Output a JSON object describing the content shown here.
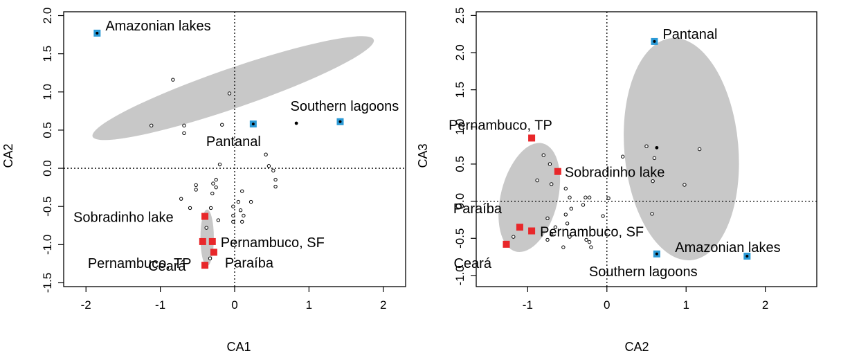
{
  "colors": {
    "ellipse": "#c8c8c8",
    "region_blue": "#2b9ad6",
    "region_red": "#e8272a",
    "point_black": "#000000"
  },
  "chart_data": [
    {
      "type": "scatter",
      "title": "",
      "xlabel": "CA1",
      "ylabel": "CA2",
      "xlim": [
        -2.3,
        2.3
      ],
      "ylim": [
        -1.55,
        2.05
      ],
      "xticks": [
        "-2",
        "-1",
        "0",
        "1",
        "2"
      ],
      "yticks": [
        "-1.5",
        "-1.0",
        "-0.5",
        "0.0",
        "0.5",
        "1.0",
        "1.5",
        "2.0"
      ],
      "reference_lines": {
        "x": 0,
        "y": 0
      },
      "ellipses": [
        {
          "cx": -0.02,
          "cy": 1.05,
          "rx": 2.0,
          "ry": 0.26,
          "angle_deg": -19
        },
        {
          "cx": -0.37,
          "cy": -0.91,
          "rx": 0.09,
          "ry": 0.37,
          "angle_deg": 0
        }
      ],
      "regions": [
        {
          "label": "Amazonian lakes",
          "group": "blue",
          "x": -1.85,
          "y": 1.77
        },
        {
          "label": "Southern lagoons",
          "group": "blue",
          "x": 1.42,
          "y": 0.61
        },
        {
          "label": "Pantanal",
          "group": "blue",
          "x": 0.25,
          "y": 0.58
        },
        {
          "label": "Sobradinho lake",
          "group": "red",
          "x": -0.4,
          "y": -0.63
        },
        {
          "label": "Pernambuco, TP",
          "group": "red",
          "x": -0.43,
          "y": -0.96
        },
        {
          "label": "Pernambuco, SF",
          "group": "red",
          "x": -0.3,
          "y": -0.96
        },
        {
          "label": "Paraíba",
          "group": "red",
          "x": -0.28,
          "y": -1.1
        },
        {
          "label": "Ceará",
          "group": "red",
          "x": -0.4,
          "y": -1.27
        }
      ],
      "filled_points": [
        {
          "x": 0.83,
          "y": 0.59
        }
      ],
      "open_points": [
        {
          "x": -0.83,
          "y": 1.16
        },
        {
          "x": -0.07,
          "y": 0.98
        },
        {
          "x": -1.12,
          "y": 0.56
        },
        {
          "x": -0.68,
          "y": 0.56
        },
        {
          "x": -0.68,
          "y": 0.46
        },
        {
          "x": -0.17,
          "y": 0.57
        },
        {
          "x": 0.42,
          "y": 0.18
        },
        {
          "x": -0.2,
          "y": 0.05
        },
        {
          "x": 0.46,
          "y": 0.03
        },
        {
          "x": 0.52,
          "y": -0.03
        },
        {
          "x": 0.55,
          "y": -0.15
        },
        {
          "x": 0.55,
          "y": -0.24
        },
        {
          "x": -0.25,
          "y": -0.15
        },
        {
          "x": -0.29,
          "y": -0.2
        },
        {
          "x": -0.25,
          "y": -0.25
        },
        {
          "x": -0.52,
          "y": -0.22
        },
        {
          "x": -0.52,
          "y": -0.28
        },
        {
          "x": 0.1,
          "y": -0.3
        },
        {
          "x": -0.72,
          "y": -0.4
        },
        {
          "x": -0.3,
          "y": -0.33
        },
        {
          "x": 0.05,
          "y": -0.44
        },
        {
          "x": 0.22,
          "y": -0.44
        },
        {
          "x": -0.6,
          "y": -0.52
        },
        {
          "x": -0.32,
          "y": -0.52
        },
        {
          "x": -0.02,
          "y": -0.5
        },
        {
          "x": 0.08,
          "y": -0.55
        },
        {
          "x": -0.02,
          "y": -0.62
        },
        {
          "x": 0.12,
          "y": -0.62
        },
        {
          "x": -0.02,
          "y": -0.7
        },
        {
          "x": 0.1,
          "y": -0.7
        },
        {
          "x": -0.22,
          "y": -0.68
        },
        {
          "x": -0.38,
          "y": -0.78
        },
        {
          "x": -0.33,
          "y": -1.18
        }
      ]
    },
    {
      "type": "scatter",
      "title": "",
      "xlabel": "CA2",
      "ylabel": "CA3",
      "xlim": [
        -1.65,
        2.65
      ],
      "ylim": [
        -1.15,
        2.55
      ],
      "xticks": [
        "-1",
        "0",
        "1",
        "2"
      ],
      "yticks": [
        "-1.0",
        "-0.5",
        "0.0",
        "0.5",
        "1.0",
        "1.5",
        "2.0",
        "2.5"
      ],
      "reference_lines": {
        "x": 0,
        "y": 0
      },
      "ellipses": [
        {
          "cx": -0.98,
          "cy": 0.05,
          "rx": 0.36,
          "ry": 0.75,
          "angle_deg": 14
        },
        {
          "cx": 0.94,
          "cy": 0.7,
          "rx": 0.72,
          "ry": 1.5,
          "angle_deg": -5
        }
      ],
      "regions": [
        {
          "label": "Pantanal",
          "group": "blue",
          "x": 0.6,
          "y": 2.15
        },
        {
          "label": "Amazonian lakes",
          "group": "blue",
          "x": 1.77,
          "y": -0.74
        },
        {
          "label": "Southern lagoons",
          "group": "blue",
          "x": 0.63,
          "y": -0.71
        },
        {
          "label": "Pernambuco, TP",
          "group": "red",
          "x": -0.95,
          "y": 0.85
        },
        {
          "label": "Sobradinho lake",
          "group": "red",
          "x": -0.62,
          "y": 0.4
        },
        {
          "label": "Paraíba",
          "group": "red",
          "x": -1.1,
          "y": -0.35
        },
        {
          "label": "Pernambuco, SF",
          "group": "red",
          "x": -0.95,
          "y": -0.4
        },
        {
          "label": "Ceará",
          "group": "red",
          "x": -1.27,
          "y": -0.58
        }
      ],
      "filled_points": [
        {
          "x": 0.63,
          "y": 0.72
        }
      ],
      "open_points": [
        {
          "x": -0.8,
          "y": 0.62
        },
        {
          "x": 0.5,
          "y": 0.74
        },
        {
          "x": 0.6,
          "y": 0.58
        },
        {
          "x": 1.17,
          "y": 0.7
        },
        {
          "x": 0.2,
          "y": 0.6
        },
        {
          "x": -0.72,
          "y": 0.5
        },
        {
          "x": -0.88,
          "y": 0.28
        },
        {
          "x": -0.7,
          "y": 0.23
        },
        {
          "x": -0.52,
          "y": 0.17
        },
        {
          "x": -0.47,
          "y": 0.05
        },
        {
          "x": -0.27,
          "y": 0.05
        },
        {
          "x": -0.22,
          "y": 0.05
        },
        {
          "x": 0.02,
          "y": 0.04
        },
        {
          "x": 0.58,
          "y": 0.27
        },
        {
          "x": 0.98,
          "y": 0.22
        },
        {
          "x": -0.3,
          "y": -0.05
        },
        {
          "x": -0.45,
          "y": -0.1
        },
        {
          "x": -0.52,
          "y": -0.18
        },
        {
          "x": 0.57,
          "y": -0.17
        },
        {
          "x": -0.05,
          "y": -0.2
        },
        {
          "x": -0.75,
          "y": -0.23
        },
        {
          "x": -0.5,
          "y": -0.3
        },
        {
          "x": -0.65,
          "y": -0.35
        },
        {
          "x": -0.7,
          "y": -0.45
        },
        {
          "x": -0.47,
          "y": -0.48
        },
        {
          "x": -0.26,
          "y": -0.52
        },
        {
          "x": -0.22,
          "y": -0.55
        },
        {
          "x": -0.75,
          "y": -0.52
        },
        {
          "x": -0.2,
          "y": -0.62
        },
        {
          "x": -1.18,
          "y": -0.48
        },
        {
          "x": -0.55,
          "y": -0.62
        }
      ]
    }
  ]
}
